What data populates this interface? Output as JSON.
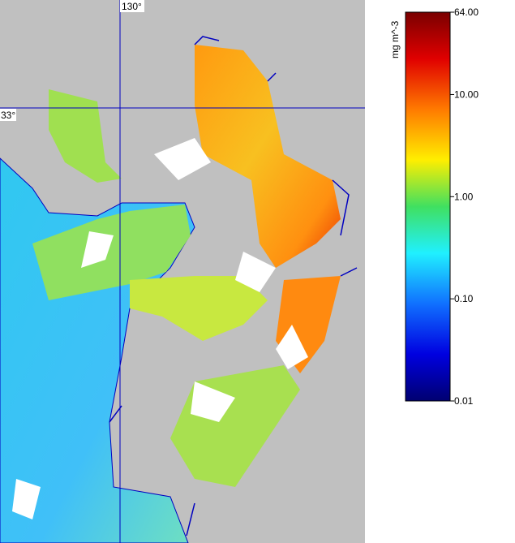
{
  "map": {
    "graticule": {
      "longitude": {
        "value": 130,
        "label": "130°"
      },
      "latitude": {
        "value": 33,
        "label": "33°"
      }
    },
    "colorbar": {
      "label": "mg m^-3",
      "log": true,
      "lim": [
        0.01,
        64
      ],
      "ticks": [
        {
          "value": 64,
          "label": "64.00"
        },
        {
          "value": 10,
          "label": "10.00"
        },
        {
          "value": 1,
          "label": "1.00"
        },
        {
          "value": 0.1,
          "label": "0.10"
        },
        {
          "value": 0.01,
          "label": "0.01"
        }
      ]
    }
  }
}
